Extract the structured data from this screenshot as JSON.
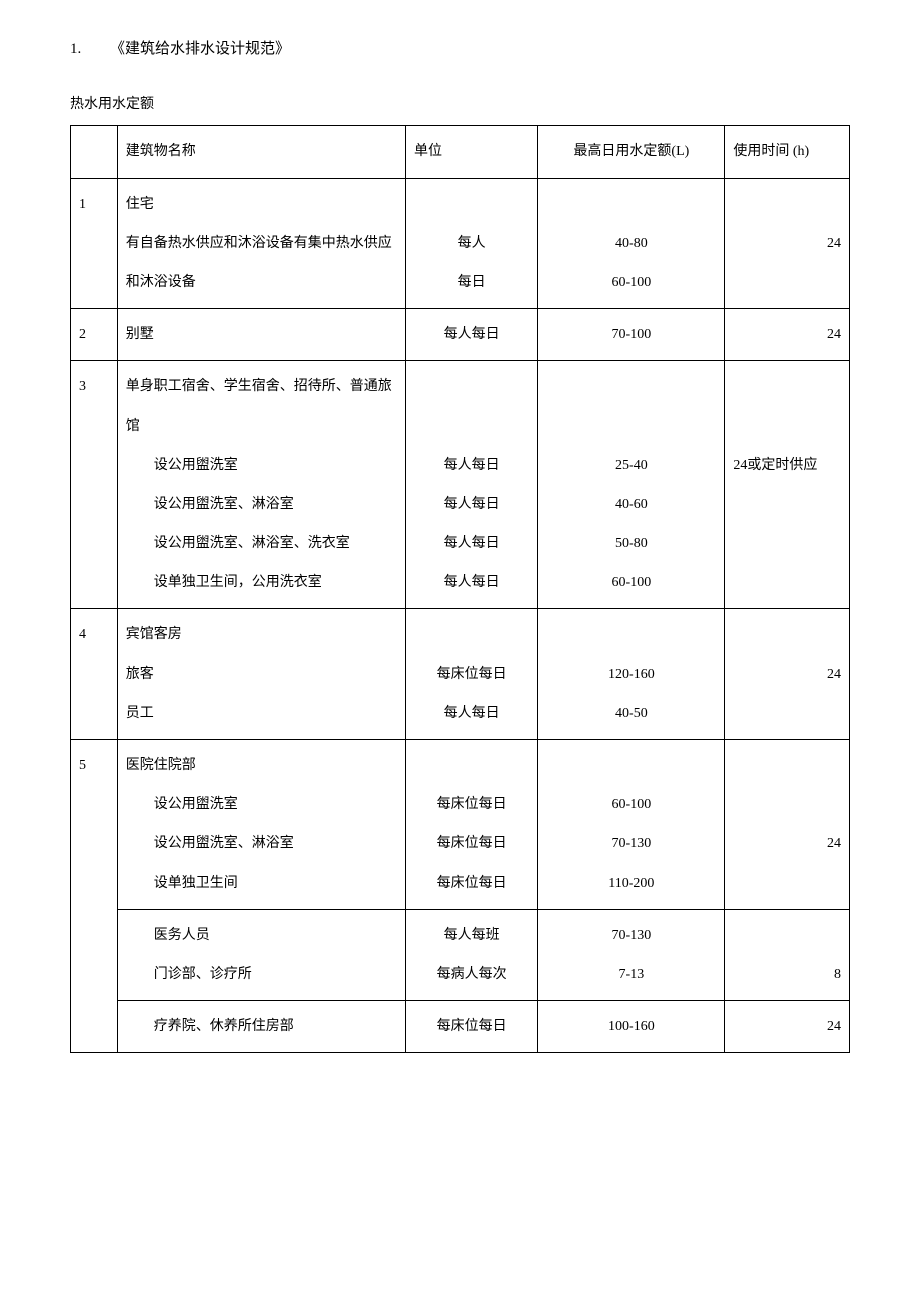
{
  "heading": {
    "number": "1.",
    "title": "《建筑给水排水设计规范》"
  },
  "subtitle": "热水用水定额",
  "columns": {
    "idx": "",
    "name": "建筑物名称",
    "unit": "单位",
    "qty": "最高日用水定额(L)",
    "time": "使用时间 (h)"
  },
  "rows": [
    {
      "idx": "1",
      "name_lines": [
        "住宅",
        "有自备热水供应和沐浴设备有集中热水供应和沐浴设备"
      ],
      "name_indents": [
        0,
        0
      ],
      "unit_lines": [
        "",
        "每人",
        "每日"
      ],
      "qty_lines": [
        "",
        "40-80",
        "60-100"
      ],
      "time": "24",
      "time_align": "right",
      "time_pad_lines": 1
    },
    {
      "idx": "2",
      "name_lines": [
        "别墅"
      ],
      "name_indents": [
        0
      ],
      "unit_lines": [
        "每人每日"
      ],
      "qty_lines": [
        "70-100"
      ],
      "time": "24",
      "time_align": "right",
      "time_pad_lines": 0
    },
    {
      "idx": "3",
      "name_lines": [
        "单身职工宿舍、学生宿舍、招待所、普通旅馆",
        "设公用盥洗室",
        "设公用盥洗室、淋浴室",
        "设公用盥洗室、淋浴室、洗衣室",
        "设单独卫生间，公用洗衣室"
      ],
      "name_indents": [
        0,
        1,
        1,
        1,
        1
      ],
      "unit_lines": [
        "",
        "",
        "每人每日",
        "每人每日",
        "每人每日",
        "每人每日"
      ],
      "qty_lines": [
        "",
        "",
        "25-40",
        "40-60",
        "50-80",
        "60-100"
      ],
      "time": "24或定时供应",
      "time_align": "left",
      "time_pad_lines": 2
    },
    {
      "idx": "4",
      "name_lines": [
        "宾馆客房",
        "旅客",
        "员工"
      ],
      "name_indents": [
        0,
        0,
        0
      ],
      "unit_lines": [
        "",
        "每床位每日",
        "每人每日"
      ],
      "qty_lines": [
        "",
        "120-160",
        "40-50"
      ],
      "time": "24",
      "time_align": "right",
      "time_pad_lines": 1
    },
    {
      "idx": "5",
      "name_lines": [
        "医院住院部",
        "设公用盥洗室",
        "设公用盥洗室、淋浴室",
        "设单独卫生间"
      ],
      "name_indents": [
        0,
        1,
        1,
        1
      ],
      "unit_lines": [
        "",
        "每床位每日",
        "每床位每日",
        "每床位每日"
      ],
      "qty_lines": [
        "",
        "60-100",
        "70-130",
        "110-200"
      ],
      "time": "24",
      "time_align": "right",
      "time_pad_lines": 2,
      "sub_rows": [
        {
          "name_lines": [
            "医务人员",
            "门诊部、诊疗所"
          ],
          "name_indents": [
            1,
            1
          ],
          "unit_lines": [
            "每人每班",
            "每病人每次"
          ],
          "qty_lines": [
            "70-130",
            "7-13"
          ],
          "time": "8",
          "time_align": "right",
          "time_pad_lines": 1
        },
        {
          "name_lines": [
            "疗养院、休养所住房部"
          ],
          "name_indents": [
            1
          ],
          "unit_lines": [
            "每床位每日"
          ],
          "qty_lines": [
            "100-160"
          ],
          "time": "24",
          "time_align": "right",
          "time_pad_lines": 0
        }
      ]
    }
  ]
}
